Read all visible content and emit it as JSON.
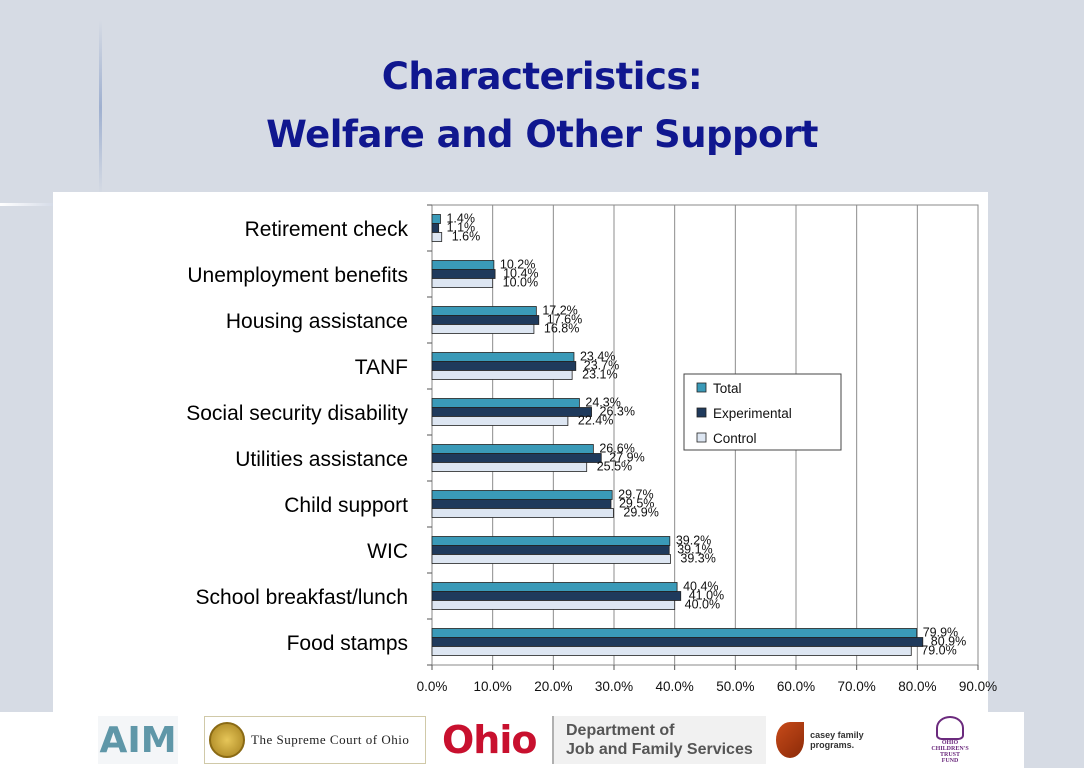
{
  "slide": {
    "title_line1": "Characteristics:",
    "title_line2": "Welfare and Other Support"
  },
  "chart_data": {
    "type": "bar",
    "orientation": "horizontal",
    "categories": [
      "Retirement check",
      "Unemployment benefits",
      "Housing assistance",
      "TANF",
      "Social security disability",
      "Utilities assistance",
      "Child support",
      "WIC",
      "School breakfast/lunch",
      "Food stamps"
    ],
    "series": [
      {
        "name": "Total",
        "values": [
          1.4,
          10.2,
          17.2,
          23.4,
          24.3,
          26.6,
          29.7,
          39.2,
          40.4,
          79.9
        ],
        "labels": [
          "1.4%",
          "10.2%",
          "17.2%",
          "23.4%",
          "24.3%",
          "26.6%",
          "29.7%",
          "39.2%",
          "40.4%",
          "79.9%"
        ],
        "color": "#3a9ab8"
      },
      {
        "name": "Experimental",
        "values": [
          1.1,
          10.4,
          17.6,
          23.7,
          26.3,
          27.9,
          29.5,
          39.1,
          41.0,
          80.9
        ],
        "labels": [
          "1.1%",
          "10.4%",
          "17.6%",
          "23.7%",
          "26.3%",
          "27.9%",
          "29.5%",
          "39.1%",
          "41.0%",
          "80.9%"
        ],
        "color": "#1f3a5c"
      },
      {
        "name": "Control",
        "values": [
          1.6,
          10.0,
          16.8,
          23.1,
          22.4,
          25.5,
          29.9,
          39.3,
          40.0,
          79.0
        ],
        "labels": [
          "1.6%",
          "10.0%",
          "16.8%",
          "23.1%",
          "22.4%",
          "25.5%",
          "29.9%",
          "39.3%",
          "40.0%",
          "79.0%"
        ],
        "color": "#dde6f2"
      }
    ],
    "xlim": [
      0,
      90
    ],
    "xticks": [
      "0.0%",
      "10.0%",
      "20.0%",
      "30.0%",
      "40.0%",
      "50.0%",
      "60.0%",
      "70.0%",
      "80.0%",
      "90.0%"
    ],
    "grid": true,
    "legend_position": "right-middle"
  },
  "footer": {
    "aim_logo": "AIM",
    "court_logo": "The Supreme Court of Ohio",
    "ohio_logo": "Ohio",
    "jfs_logo": "Department of\nJob and Family Services",
    "casey_logo": "casey family programs.",
    "trust_logo": "OHIO\nCHILDREN'S\nTRUST\nFUND",
    "icons": [
      "court-seal-icon",
      "casey-leaf-icon",
      "children-trust-figure-icon"
    ]
  }
}
